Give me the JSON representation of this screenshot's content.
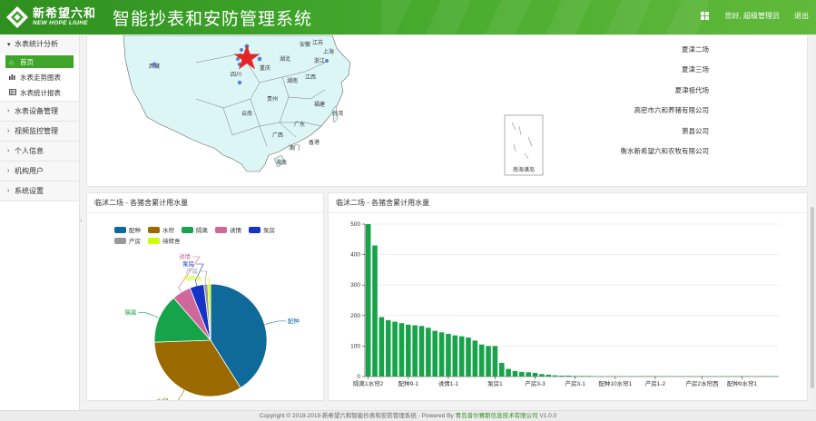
{
  "header": {
    "logo_cn": "新希望六和",
    "logo_en": "NEW HOPE LIUHE",
    "title": "智能抄表和安防管理系统",
    "greeting": "您好, 超级管理员",
    "logout": "退出"
  },
  "sidebar": {
    "groups": [
      {
        "label": "水表统计分析",
        "expanded": true,
        "items": [
          {
            "label": "首页",
            "icon": "home-icon",
            "active": true
          },
          {
            "label": "水表走势图表",
            "icon": "bar-chart-icon"
          },
          {
            "label": "水表统计报表",
            "icon": "table-icon"
          }
        ]
      },
      {
        "label": "水表设备管理"
      },
      {
        "label": "视频监控管理"
      },
      {
        "label": "个人信息"
      },
      {
        "label": "机构用户"
      },
      {
        "label": "系统设置"
      }
    ]
  },
  "map": {
    "region_labels": [
      "西藏",
      "四川",
      "重庆",
      "湖北",
      "安徽",
      "江苏",
      "上海",
      "浙江",
      "湖南",
      "江西",
      "贵州",
      "云南",
      "广西",
      "广东",
      "福建",
      "台湾",
      "香港",
      "澳门",
      "海南",
      "南海诸岛"
    ],
    "farms": [
      "夏津二场",
      "夏津三场",
      "夏津祖代场",
      "高密市六和养猪有限公司",
      "萧县公司",
      "衡水新希望六和农牧有限公司"
    ]
  },
  "pie_panel": {
    "title": "临沭二场 - 各猪舍累计用水量",
    "chart_data": {
      "type": "pie",
      "colors": [
        "#0f6a9a",
        "#9a6a00",
        "#17a34a",
        "#d0679a",
        "#1533c6",
        "#999999",
        "#ccff00"
      ],
      "slices": [
        {
          "name": "配种",
          "value": 1510
        },
        {
          "name": "水帘",
          "value": 1230
        },
        {
          "name": "隔离",
          "value": 520
        },
        {
          "name": "诱情",
          "value": 200
        },
        {
          "name": "泵房",
          "value": 150
        },
        {
          "name": "产房",
          "value": 40
        },
        {
          "name": "待转舍",
          "value": 30
        }
      ]
    }
  },
  "bar_panel": {
    "title": "临沭二场 - 各猪舍累计用水量",
    "chart_data": {
      "type": "bar",
      "color": "#17a34a",
      "ylim": [
        0,
        500
      ],
      "yticks": [
        0,
        100,
        200,
        300,
        400,
        500
      ],
      "xtick_labels": [
        "隔离1水帘2",
        "配种9-1",
        "诱情1-1",
        "泵房1",
        "产房3-3",
        "产房3-1",
        "配种10水帘1",
        "产房1-2",
        "产房2水帘西",
        "配种9水帘1"
      ],
      "values": [
        500,
        430,
        195,
        185,
        180,
        175,
        170,
        168,
        166,
        160,
        150,
        145,
        140,
        135,
        132,
        128,
        118,
        105,
        100,
        100,
        45,
        25,
        18,
        15,
        14,
        12,
        8,
        6,
        4,
        3,
        3,
        2,
        2,
        2,
        1,
        1,
        1,
        1,
        1,
        1,
        1,
        1,
        1,
        1,
        1,
        1,
        1,
        1,
        1,
        1,
        1,
        1,
        1,
        1,
        1,
        1,
        1,
        1,
        1,
        1,
        1,
        1
      ]
    }
  },
  "footer": {
    "text1": "Copyright © 2018-2019 新希望六和智能抄表和安防管理系统 - Powered By ",
    "company": "青岛普尔赛斯信息技术有限公司",
    "version": " V1.0.0"
  }
}
